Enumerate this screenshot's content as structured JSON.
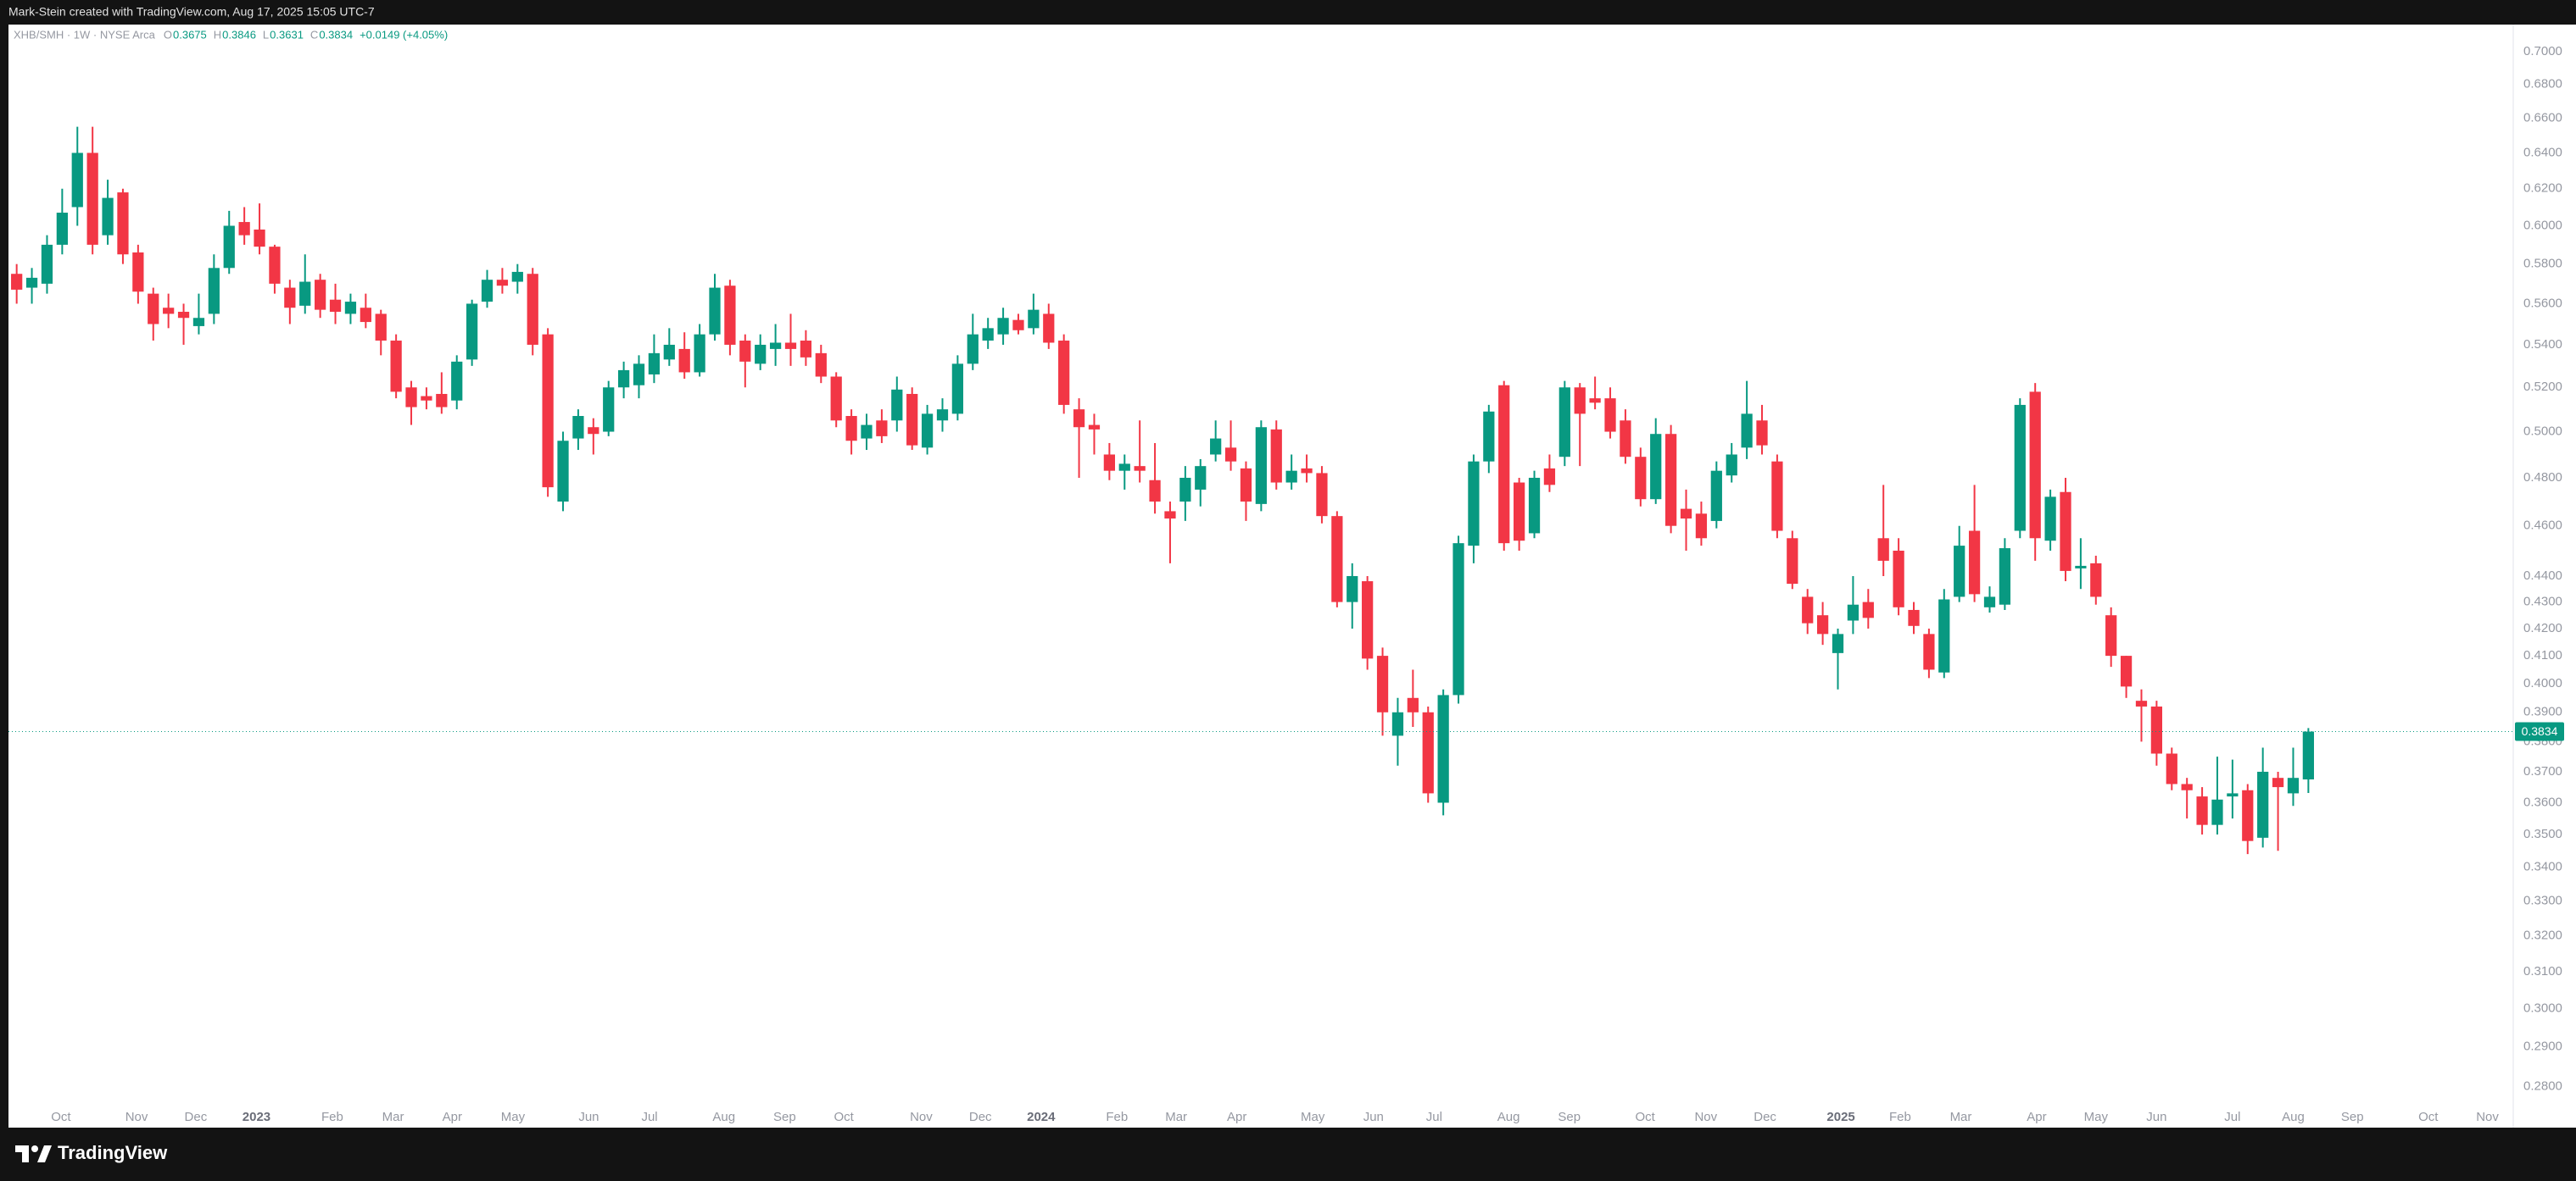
{
  "header": {
    "attribution": "Mark-Stein created with TradingView.com, Aug 17, 2025 15:05 UTC-7"
  },
  "brand": "TradingView",
  "chart_data": {
    "type": "candlestick",
    "legend": {
      "symbol": "XHB/SMH · 1W · NYSE Arca",
      "items": [
        {
          "key": "O",
          "value": "0.3675"
        },
        {
          "key": "H",
          "value": "0.3846"
        },
        {
          "key": "L",
          "value": "0.3631"
        },
        {
          "key": "C",
          "value": "0.3834"
        }
      ],
      "change": "+0.0149 (+4.05%)"
    },
    "up_color": "#089981",
    "down_color": "#f23645",
    "log_scale": true,
    "grid": false,
    "last_price": 0.3834,
    "open": [
      0.575,
      0.568,
      0.57,
      0.59,
      0.61,
      0.64,
      0.595,
      0.618,
      0.586,
      0.565,
      0.558,
      0.556,
      0.549,
      0.555,
      0.578,
      0.602,
      0.598,
      0.589,
      0.568,
      0.559,
      0.572,
      0.562,
      0.555,
      0.558,
      0.555,
      0.542,
      0.52,
      0.516,
      0.517,
      0.514,
      0.533,
      0.561,
      0.572,
      0.571,
      0.575,
      0.545,
      0.47,
      0.497,
      0.502,
      0.5,
      0.52,
      0.521,
      0.526,
      0.533,
      0.538,
      0.527,
      0.545,
      0.569,
      0.542,
      0.531,
      0.538,
      0.541,
      0.542,
      0.536,
      0.525,
      0.507,
      0.497,
      0.505,
      0.505,
      0.517,
      0.493,
      0.505,
      0.508,
      0.531,
      0.542,
      0.545,
      0.552,
      0.548,
      0.555,
      0.542,
      0.51,
      0.503,
      0.49,
      0.483,
      0.485,
      0.479,
      0.466,
      0.47,
      0.475,
      0.49,
      0.493,
      0.484,
      0.469,
      0.501,
      0.478,
      0.484,
      0.482,
      0.464,
      0.43,
      0.438,
      0.41,
      0.382,
      0.395,
      0.39,
      0.36,
      0.396,
      0.452,
      0.487,
      0.521,
      0.478,
      0.457,
      0.484,
      0.489,
      0.52,
      0.515,
      0.515,
      0.505,
      0.489,
      0.471,
      0.499,
      0.467,
      0.465,
      0.462,
      0.481,
      0.493,
      0.505,
      0.487,
      0.455,
      0.432,
      0.425,
      0.411,
      0.423,
      0.43,
      0.455,
      0.45,
      0.427,
      0.418,
      0.404,
      0.432,
      0.458,
      0.428,
      0.429,
      0.458,
      0.518,
      0.454,
      0.474,
      0.443,
      0.445,
      0.425,
      0.41,
      0.394,
      0.392,
      0.376,
      0.366,
      0.362,
      0.353,
      0.362,
      0.364,
      0.349,
      0.368,
      0.363,
      0.3675
    ],
    "high": [
      0.58,
      0.578,
      0.595,
      0.62,
      0.655,
      0.655,
      0.625,
      0.62,
      0.59,
      0.568,
      0.565,
      0.56,
      0.565,
      0.585,
      0.608,
      0.61,
      0.612,
      0.59,
      0.572,
      0.585,
      0.575,
      0.57,
      0.565,
      0.565,
      0.557,
      0.545,
      0.523,
      0.52,
      0.527,
      0.535,
      0.562,
      0.577,
      0.578,
      0.58,
      0.578,
      0.548,
      0.5,
      0.51,
      0.506,
      0.523,
      0.532,
      0.535,
      0.545,
      0.548,
      0.546,
      0.55,
      0.575,
      0.572,
      0.545,
      0.545,
      0.55,
      0.555,
      0.547,
      0.54,
      0.527,
      0.51,
      0.508,
      0.51,
      0.525,
      0.52,
      0.512,
      0.515,
      0.535,
      0.555,
      0.553,
      0.558,
      0.555,
      0.565,
      0.56,
      0.545,
      0.515,
      0.508,
      0.495,
      0.49,
      0.505,
      0.495,
      0.47,
      0.485,
      0.488,
      0.505,
      0.505,
      0.487,
      0.505,
      0.505,
      0.49,
      0.49,
      0.485,
      0.466,
      0.445,
      0.44,
      0.413,
      0.395,
      0.405,
      0.392,
      0.398,
      0.456,
      0.49,
      0.512,
      0.523,
      0.48,
      0.483,
      0.49,
      0.523,
      0.522,
      0.525,
      0.52,
      0.51,
      0.493,
      0.506,
      0.503,
      0.475,
      0.47,
      0.487,
      0.495,
      0.523,
      0.512,
      0.49,
      0.458,
      0.435,
      0.43,
      0.42,
      0.44,
      0.435,
      0.477,
      0.455,
      0.43,
      0.42,
      0.435,
      0.46,
      0.477,
      0.436,
      0.455,
      0.515,
      0.522,
      0.475,
      0.48,
      0.455,
      0.448,
      0.428,
      0.41,
      0.398,
      0.394,
      0.378,
      0.368,
      0.365,
      0.375,
      0.374,
      0.366,
      0.378,
      0.37,
      0.378,
      0.3846
    ],
    "low": [
      0.56,
      0.56,
      0.565,
      0.585,
      0.6,
      0.585,
      0.59,
      0.58,
      0.56,
      0.542,
      0.548,
      0.54,
      0.545,
      0.55,
      0.575,
      0.59,
      0.585,
      0.565,
      0.55,
      0.555,
      0.553,
      0.55,
      0.55,
      0.548,
      0.535,
      0.515,
      0.503,
      0.51,
      0.508,
      0.51,
      0.53,
      0.558,
      0.565,
      0.565,
      0.535,
      0.472,
      0.466,
      0.492,
      0.49,
      0.498,
      0.515,
      0.515,
      0.522,
      0.53,
      0.524,
      0.525,
      0.542,
      0.535,
      0.52,
      0.528,
      0.53,
      0.53,
      0.53,
      0.522,
      0.502,
      0.49,
      0.492,
      0.495,
      0.5,
      0.492,
      0.49,
      0.5,
      0.505,
      0.528,
      0.538,
      0.54,
      0.545,
      0.545,
      0.538,
      0.508,
      0.48,
      0.49,
      0.479,
      0.475,
      0.478,
      0.465,
      0.445,
      0.462,
      0.468,
      0.487,
      0.483,
      0.462,
      0.466,
      0.475,
      0.475,
      0.478,
      0.461,
      0.428,
      0.42,
      0.405,
      0.382,
      0.372,
      0.385,
      0.36,
      0.356,
      0.393,
      0.445,
      0.482,
      0.45,
      0.45,
      0.455,
      0.474,
      0.485,
      0.485,
      0.51,
      0.497,
      0.486,
      0.468,
      0.469,
      0.457,
      0.45,
      0.452,
      0.459,
      0.478,
      0.488,
      0.49,
      0.455,
      0.435,
      0.418,
      0.414,
      0.398,
      0.418,
      0.42,
      0.44,
      0.425,
      0.418,
      0.402,
      0.402,
      0.43,
      0.43,
      0.426,
      0.427,
      0.455,
      0.446,
      0.45,
      0.438,
      0.435,
      0.429,
      0.406,
      0.395,
      0.38,
      0.372,
      0.364,
      0.355,
      0.35,
      0.35,
      0.355,
      0.344,
      0.346,
      0.345,
      0.359,
      0.3631
    ],
    "close": [
      0.567,
      0.573,
      0.59,
      0.607,
      0.64,
      0.59,
      0.615,
      0.585,
      0.566,
      0.55,
      0.555,
      0.553,
      0.553,
      0.578,
      0.6,
      0.595,
      0.589,
      0.57,
      0.558,
      0.571,
      0.557,
      0.556,
      0.561,
      0.551,
      0.542,
      0.518,
      0.511,
      0.514,
      0.511,
      0.532,
      0.56,
      0.572,
      0.569,
      0.576,
      0.54,
      0.476,
      0.496,
      0.507,
      0.499,
      0.52,
      0.528,
      0.531,
      0.536,
      0.54,
      0.527,
      0.545,
      0.568,
      0.54,
      0.532,
      0.54,
      0.541,
      0.538,
      0.534,
      0.525,
      0.505,
      0.496,
      0.503,
      0.498,
      0.519,
      0.494,
      0.508,
      0.51,
      0.531,
      0.545,
      0.548,
      0.553,
      0.547,
      0.557,
      0.541,
      0.512,
      0.502,
      0.501,
      0.483,
      0.486,
      0.483,
      0.47,
      0.463,
      0.48,
      0.485,
      0.497,
      0.487,
      0.47,
      0.502,
      0.478,
      0.483,
      0.482,
      0.464,
      0.43,
      0.44,
      0.409,
      0.39,
      0.39,
      0.39,
      0.363,
      0.396,
      0.453,
      0.487,
      0.509,
      0.453,
      0.454,
      0.48,
      0.477,
      0.52,
      0.508,
      0.513,
      0.5,
      0.489,
      0.471,
      0.499,
      0.46,
      0.463,
      0.455,
      0.483,
      0.49,
      0.508,
      0.494,
      0.458,
      0.437,
      0.422,
      0.418,
      0.418,
      0.429,
      0.424,
      0.446,
      0.428,
      0.421,
      0.405,
      0.431,
      0.452,
      0.433,
      0.432,
      0.451,
      0.512,
      0.455,
      0.472,
      0.442,
      0.444,
      0.432,
      0.41,
      0.399,
      0.392,
      0.376,
      0.366,
      0.364,
      0.353,
      0.361,
      0.363,
      0.348,
      0.37,
      0.365,
      0.368,
      0.3834
    ],
    "ylim": [
      0.27,
      0.717
    ],
    "yticks": [
      {
        "value": 0.28,
        "label": "0.2800"
      },
      {
        "value": 0.29,
        "label": "0.2900"
      },
      {
        "value": 0.3,
        "label": "0.3000"
      },
      {
        "value": 0.31,
        "label": "0.3100"
      },
      {
        "value": 0.32,
        "label": "0.3200"
      },
      {
        "value": 0.33,
        "label": "0.3300"
      },
      {
        "value": 0.34,
        "label": "0.3400"
      },
      {
        "value": 0.35,
        "label": "0.3500"
      },
      {
        "value": 0.36,
        "label": "0.3600"
      },
      {
        "value": 0.37,
        "label": "0.3700"
      },
      {
        "value": 0.38,
        "label": "0.3800"
      },
      {
        "value": 0.39,
        "label": "0.3900"
      },
      {
        "value": 0.4,
        "label": "0.4000"
      },
      {
        "value": 0.41,
        "label": "0.4100"
      },
      {
        "value": 0.42,
        "label": "0.4200"
      },
      {
        "value": 0.43,
        "label": "0.4300"
      },
      {
        "value": 0.44,
        "label": "0.4400"
      },
      {
        "value": 0.46,
        "label": "0.4600"
      },
      {
        "value": 0.48,
        "label": "0.4800"
      },
      {
        "value": 0.5,
        "label": "0.5000"
      },
      {
        "value": 0.52,
        "label": "0.5200"
      },
      {
        "value": 0.54,
        "label": "0.5400"
      },
      {
        "value": 0.56,
        "label": "0.5600"
      },
      {
        "value": 0.58,
        "label": "0.5800"
      },
      {
        "value": 0.6,
        "label": "0.6000"
      },
      {
        "value": 0.62,
        "label": "0.6200"
      },
      {
        "value": 0.64,
        "label": "0.6400"
      },
      {
        "value": 0.66,
        "label": "0.6600"
      },
      {
        "value": 0.68,
        "label": "0.6800"
      },
      {
        "value": 0.7,
        "label": "0.7000"
      }
    ],
    "xlim": [
      -0.54,
      164.5
    ],
    "xticks": [
      {
        "value": 2.92,
        "label": "Oct"
      },
      {
        "value": 7.9,
        "label": "Nov"
      },
      {
        "value": 11.8,
        "label": "Dec"
      },
      {
        "value": 15.8,
        "label": "2023"
      },
      {
        "value": 20.8,
        "label": "Feb"
      },
      {
        "value": 24.8,
        "label": "Mar"
      },
      {
        "value": 28.7,
        "label": "Apr"
      },
      {
        "value": 32.7,
        "label": "May"
      },
      {
        "value": 37.7,
        "label": "Jun"
      },
      {
        "value": 41.7,
        "label": "Jul"
      },
      {
        "value": 46.6,
        "label": "Aug"
      },
      {
        "value": 50.6,
        "label": "Sep"
      },
      {
        "value": 54.5,
        "label": "Oct"
      },
      {
        "value": 59.6,
        "label": "Nov"
      },
      {
        "value": 63.5,
        "label": "Dec"
      },
      {
        "value": 67.5,
        "label": "2024"
      },
      {
        "value": 72.5,
        "label": "Feb"
      },
      {
        "value": 76.4,
        "label": "Mar"
      },
      {
        "value": 80.4,
        "label": "Apr"
      },
      {
        "value": 85.4,
        "label": "May"
      },
      {
        "value": 89.4,
        "label": "Jun"
      },
      {
        "value": 93.4,
        "label": "Jul"
      },
      {
        "value": 98.3,
        "label": "Aug"
      },
      {
        "value": 102.3,
        "label": "Sep"
      },
      {
        "value": 107.3,
        "label": "Oct"
      },
      {
        "value": 111.3,
        "label": "Nov"
      },
      {
        "value": 115.2,
        "label": "Dec"
      },
      {
        "value": 120.2,
        "label": "2025"
      },
      {
        "value": 124.1,
        "label": "Feb"
      },
      {
        "value": 128.1,
        "label": "Mar"
      },
      {
        "value": 133.1,
        "label": "Apr"
      },
      {
        "value": 137,
        "label": "May"
      },
      {
        "value": 141,
        "label": "Jun"
      },
      {
        "value": 146,
        "label": "Jul"
      },
      {
        "value": 150,
        "label": "Aug"
      },
      {
        "value": 153.9,
        "label": "Sep"
      },
      {
        "value": 158.9,
        "label": "Oct"
      },
      {
        "value": 162.8,
        "label": "Nov"
      }
    ]
  }
}
